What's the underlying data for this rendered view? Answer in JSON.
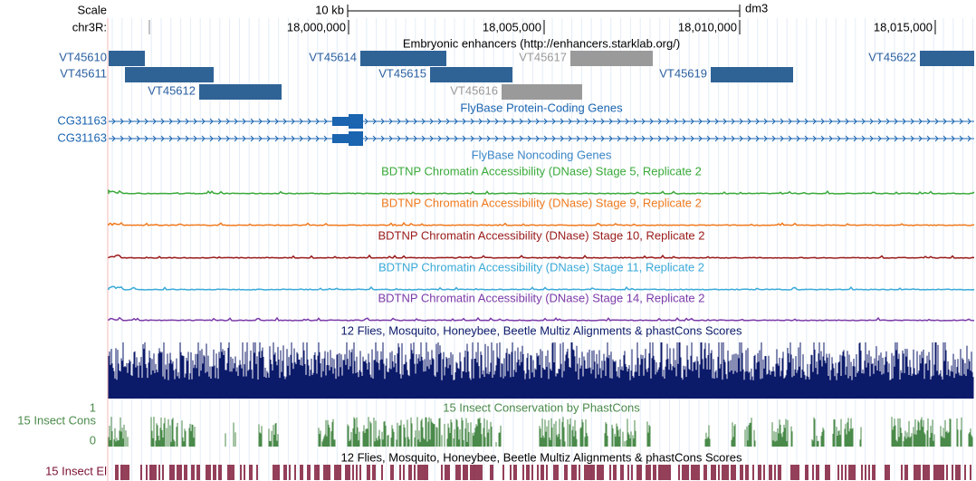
{
  "ruler": {
    "scale_label": "Scale",
    "scale_bar": "10 kb",
    "assembly": "dm3",
    "chrom": "chr3R:",
    "positions": [
      "18,000,000",
      "18,005,000",
      "18,010,000",
      "18,015,000"
    ]
  },
  "enhancers": {
    "title": "Embryonic enhancers (http://enhancers.starklab.org/)",
    "items": [
      {
        "label": "VT45610",
        "color": "#2f6396"
      },
      {
        "label": "VT45611",
        "color": "#2f6396"
      },
      {
        "label": "VT45612",
        "color": "#2f6396"
      },
      {
        "label": "VT45614",
        "color": "#2f6396"
      },
      {
        "label": "VT45615",
        "color": "#2f6396"
      },
      {
        "label": "VT45616",
        "color": "#9a9a9a"
      },
      {
        "label": "VT45617",
        "color": "#9a9a9a"
      },
      {
        "label": "VT45619",
        "color": "#2f6396"
      },
      {
        "label": "VT45622",
        "color": "#2f6396"
      }
    ]
  },
  "genes": {
    "title": "FlyBase Protein-Coding Genes",
    "color": "#1a64b0",
    "items": [
      "CG31163",
      "CG31163"
    ]
  },
  "noncoding": {
    "title": "FlyBase Noncoding Genes",
    "color": "#3a86c8"
  },
  "dnase_tracks": [
    {
      "title": "BDTNP Chromatin Accessibility (DNase) Stage 5, Replicate 2",
      "color": "#3aaa3a"
    },
    {
      "title": "BDTNP Chromatin Accessibility (DNase) Stage 9, Replicate 2",
      "color": "#f07a1e"
    },
    {
      "title": "BDTNP Chromatin Accessibility (DNase) Stage 10, Replicate 2",
      "color": "#9a1a1a"
    },
    {
      "title": "BDTNP Chromatin Accessibility (DNase) Stage 11, Replicate 2",
      "color": "#3aaad8"
    },
    {
      "title": "BDTNP Chromatin Accessibility (DNase) Stage 14, Replicate 2",
      "color": "#7a3aa8"
    }
  ],
  "multiz": {
    "title": "12 Flies, Mosquito, Honeybee, Beetle Multiz Alignments & phastCons Scores",
    "color": "#0c1a6a"
  },
  "cons": {
    "title": "15 Insect Conservation by PhastCons",
    "label": "15 Insect Cons",
    "max": "1",
    "min": "0",
    "color": "#4a8a4a"
  },
  "elements": {
    "title": "12 Flies, Mosquito, Honeybee, Beetle Multiz Alignments & phastCons Scores",
    "label": "15 Insect El",
    "color": "#7a1030"
  }
}
